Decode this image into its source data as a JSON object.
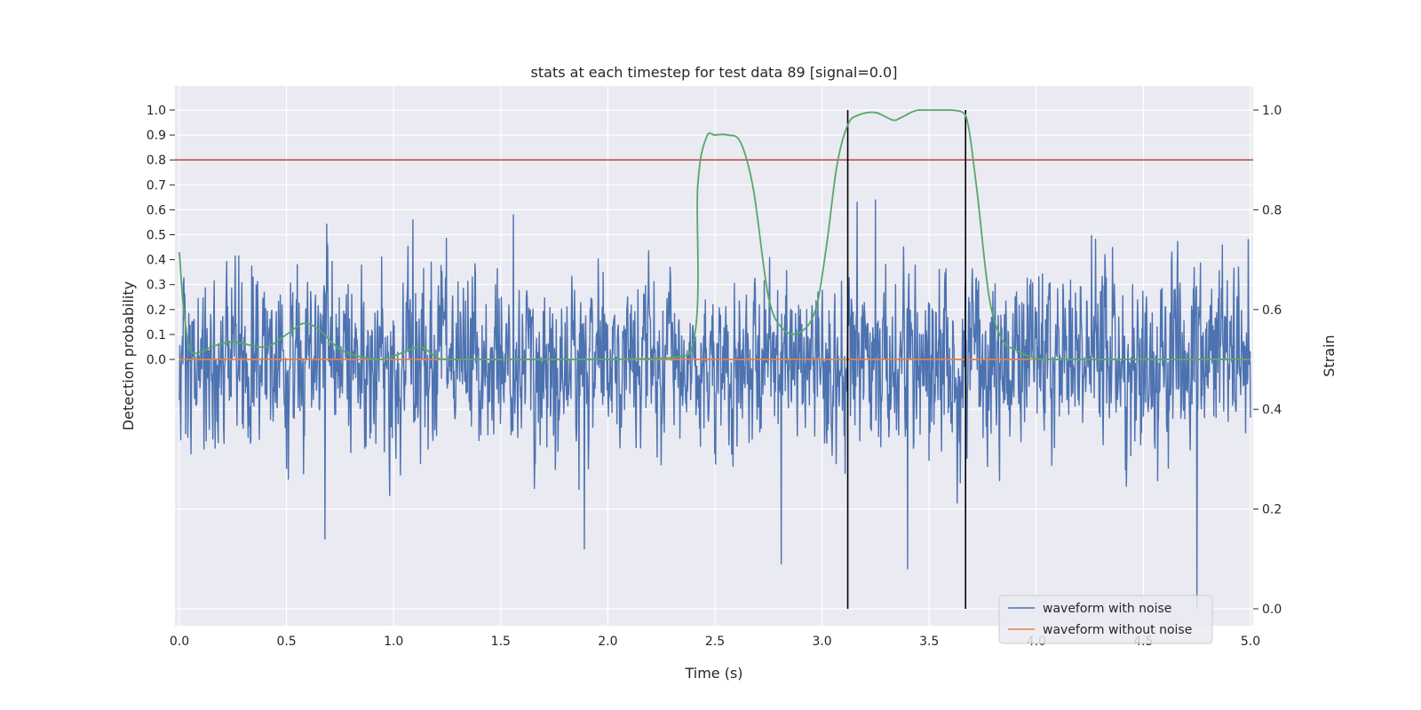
{
  "chart_data": {
    "type": "line",
    "title": "stats at each timestep for test data 89 [signal=0.0]",
    "xlabel": "Time (s)",
    "ylabel_left": "Detection probability",
    "ylabel_right": "Strain",
    "xlim": [
      0.0,
      5.0
    ],
    "x_ticks": [
      "0.0",
      "0.5",
      "1.0",
      "1.5",
      "2.0",
      "2.5",
      "3.0",
      "3.5",
      "4.0",
      "4.5",
      "5.0"
    ],
    "left_ticks": [
      "0.0",
      "0.1",
      "0.2",
      "0.3",
      "0.4",
      "0.5",
      "0.6",
      "0.7",
      "0.8",
      "0.9",
      "1.0"
    ],
    "right_ticks": [
      "0.0",
      "0.2",
      "0.4",
      "0.6",
      "0.8",
      "1.0"
    ],
    "grid": true,
    "legend_placement": "lower-right",
    "legend": [
      "waveform with noise",
      "waveform without noise"
    ],
    "colors": {
      "noise": "#4c72b0",
      "clean": "#dd8452",
      "probability": "#55a868",
      "threshold": "#c44e52",
      "markers": "#000000",
      "background": "#eaeaf2"
    },
    "threshold": 0.8,
    "vertical_markers": [
      3.12,
      3.67
    ],
    "series": [
      {
        "name": "waveform with noise",
        "axis": "right",
        "x_range": [
          0.0,
          5.0
        ],
        "baseline": 0.5,
        "noise_sigma": 0.085,
        "notable_peaks": [
          [
            0.55,
            0.69
          ],
          [
            1.09,
            0.78
          ],
          [
            1.56,
            0.79
          ],
          [
            3.25,
            0.82
          ],
          [
            4.99,
            0.74
          ]
        ],
        "notable_troughs": [
          [
            0.68,
            0.14
          ],
          [
            1.89,
            0.12
          ],
          [
            2.81,
            0.09
          ],
          [
            3.4,
            0.08
          ],
          [
            4.75,
            0.0
          ]
        ]
      },
      {
        "name": "waveform without noise",
        "axis": "right",
        "x": [
          0.0,
          5.0
        ],
        "y": [
          0.5,
          0.5
        ]
      },
      {
        "name": "",
        "axis": "left",
        "x": [
          0.0,
          0.02,
          0.05,
          0.1,
          0.15,
          0.25,
          0.4,
          0.5,
          0.58,
          0.65,
          0.75,
          0.85,
          0.95,
          1.05,
          1.13,
          1.2,
          1.3,
          2.0,
          2.38,
          2.42,
          2.46,
          2.5,
          2.56,
          2.62,
          2.68,
          2.75,
          2.82,
          2.9,
          2.97,
          3.02,
          3.07,
          3.12,
          3.17,
          3.25,
          3.33,
          3.37,
          3.45,
          3.6,
          3.67,
          3.72,
          3.78,
          3.84,
          3.9,
          3.98,
          4.1,
          5.0
        ],
        "y": [
          0.43,
          0.2,
          0.04,
          0.03,
          0.05,
          0.07,
          0.05,
          0.1,
          0.145,
          0.12,
          0.04,
          0.01,
          0.0,
          0.03,
          0.05,
          0.01,
          0.0,
          0.0,
          0.02,
          0.7,
          0.89,
          0.9,
          0.9,
          0.87,
          0.68,
          0.25,
          0.12,
          0.11,
          0.2,
          0.45,
          0.78,
          0.94,
          0.98,
          0.99,
          0.96,
          0.97,
          1.0,
          1.0,
          0.98,
          0.7,
          0.25,
          0.08,
          0.04,
          0.01,
          0.0,
          0.0
        ]
      }
    ]
  }
}
